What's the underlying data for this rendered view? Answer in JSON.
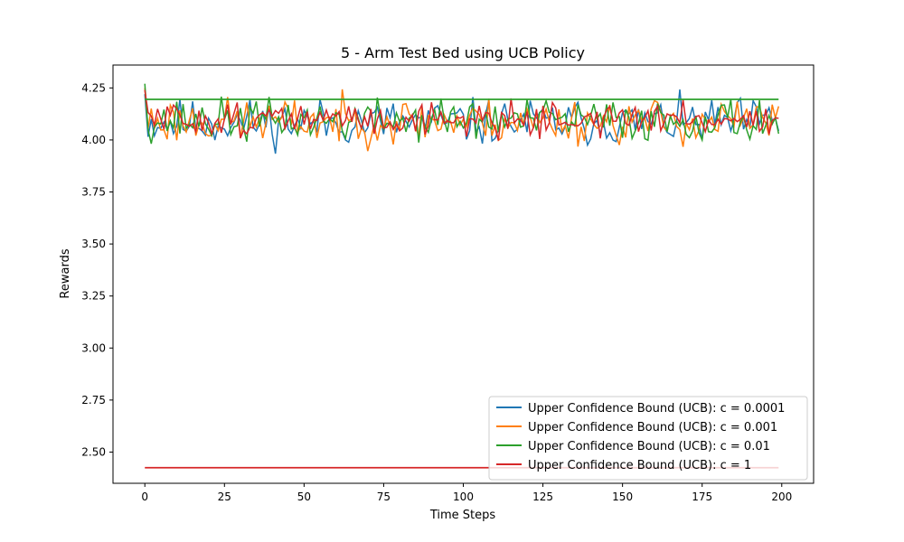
{
  "chart_data": {
    "type": "line",
    "title": "5 - Arm Test Bed using UCB Policy",
    "xlabel": "Time Steps",
    "ylabel": "Rewards",
    "xlim": [
      -10,
      210
    ],
    "ylim": [
      2.35,
      4.36
    ],
    "xticks": [
      0,
      25,
      50,
      75,
      100,
      125,
      150,
      175,
      200
    ],
    "yticks": [
      2.5,
      2.75,
      3.0,
      3.25,
      3.5,
      3.75,
      4.0,
      4.25
    ],
    "ytick_labels": [
      "2.50",
      "2.75",
      "3.00",
      "3.25",
      "3.50",
      "3.75",
      "4.00",
      "4.25"
    ],
    "legend_position": "lower right",
    "grid": false,
    "reference_lines": [
      {
        "y": 4.195,
        "x_start": 0,
        "x_end": 199,
        "color": "#2ca02c"
      },
      {
        "y": 2.425,
        "x_start": 0,
        "x_end": 199,
        "color": "#d62728"
      }
    ],
    "series": [
      {
        "name": "Upper Confidence Bound (UCB): c = 0.0001",
        "color": "#1f77b4",
        "start": 4.22,
        "mean": 4.085,
        "amplitude": 0.055,
        "seed": 11
      },
      {
        "name": "Upper Confidence Bound (UCB): c = 0.001",
        "color": "#ff7f0e",
        "start": 4.25,
        "mean": 4.09,
        "amplitude": 0.055,
        "seed": 23
      },
      {
        "name": "Upper Confidence Bound (UCB): c = 0.01",
        "color": "#2ca02c",
        "start": 4.27,
        "mean": 4.095,
        "amplitude": 0.05,
        "seed": 37
      },
      {
        "name": "Upper Confidence Bound (UCB): c = 1",
        "color": "#d62728",
        "start": 4.24,
        "mean": 4.1,
        "amplitude": 0.04,
        "seed": 51
      }
    ],
    "n_points": 200
  }
}
